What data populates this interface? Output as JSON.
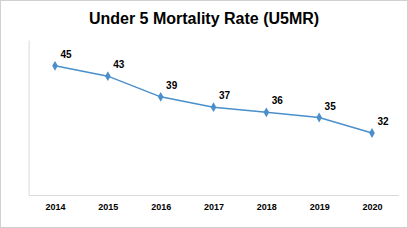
{
  "chart_data": {
    "type": "line",
    "title": "Under 5 Mortality Rate (U5MR)",
    "categories": [
      "2014",
      "2015",
      "2016",
      "2017",
      "2018",
      "2019",
      "2020"
    ],
    "values": [
      45,
      43,
      39,
      37,
      36,
      35,
      32
    ],
    "color": "#4a8fcb",
    "marker": "diamond",
    "ylim": [
      20,
      50
    ],
    "data_labels": true,
    "tick_labels": "x",
    "grid": false
  }
}
